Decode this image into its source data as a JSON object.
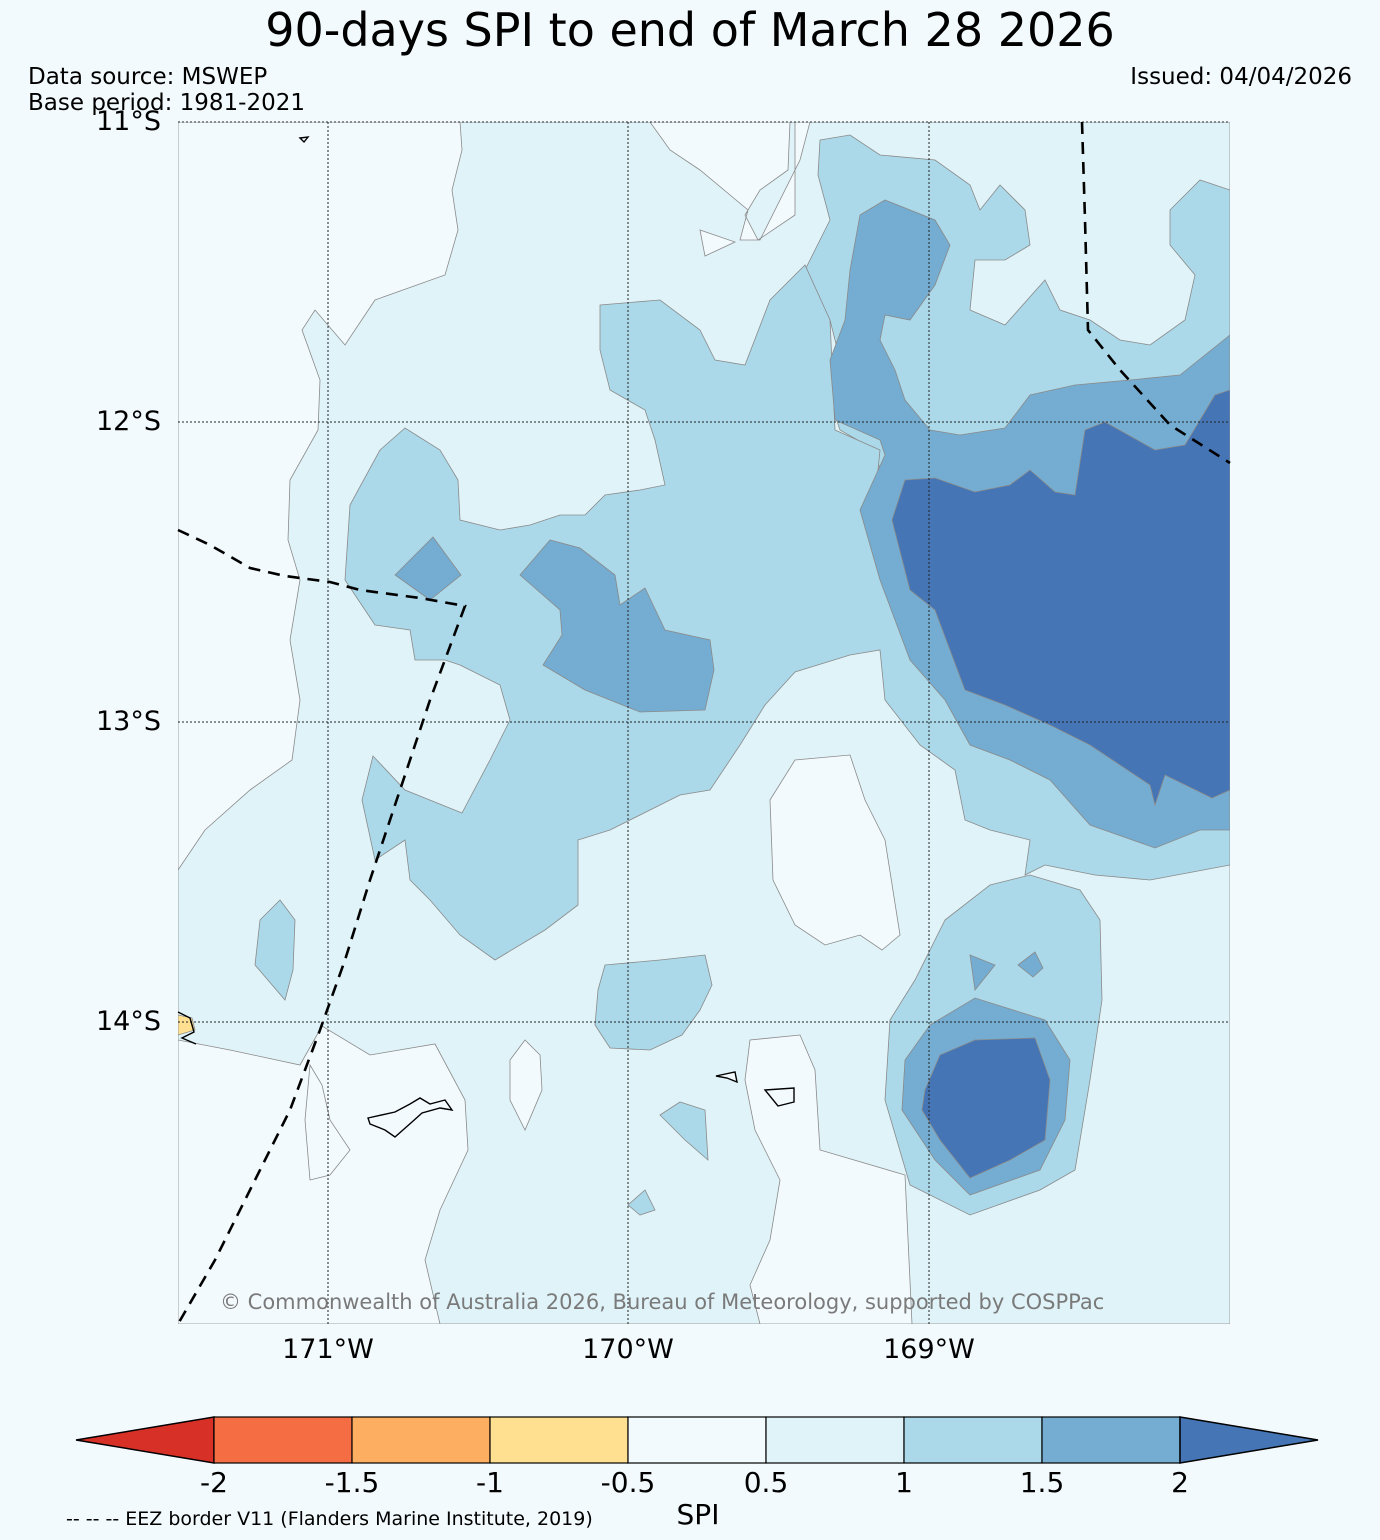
{
  "title": "90-days SPI to end of March 28 2026",
  "data_source": "Data source: MSWEP",
  "base_period": "Base period: 1981-2021",
  "issued": "Issued: 04/04/2026",
  "lat_labels": [
    "11°S",
    "12°S",
    "13°S",
    "14°S"
  ],
  "lon_labels": [
    "171°W",
    "170°W",
    "169°W"
  ],
  "copyright": "© Commonwealth of Australia 2026, Bureau of Meteorology, supported by COSPPac",
  "colorbar": {
    "ticks": [
      "-2",
      "-1.5",
      "-1",
      "-0.5",
      "0.5",
      "1",
      "1.5",
      "2"
    ],
    "label": "SPI",
    "colors": [
      "#d73027",
      "#f46d43",
      "#fdae61",
      "#fee090",
      "#f3fafd",
      "#e0f3f8",
      "#abd9e9",
      "#74add1",
      "#4575b4"
    ]
  },
  "legend_note": "-- -- -- EEZ border V11 (Flanders Marine Institute, 2019)"
}
